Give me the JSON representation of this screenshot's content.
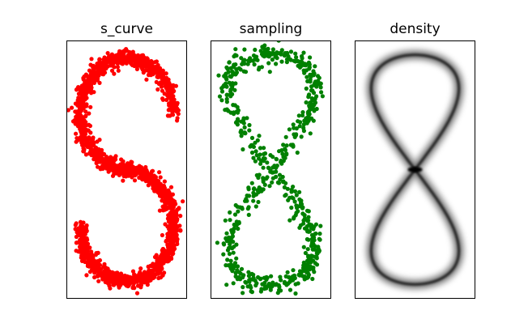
{
  "chart_data": [
    {
      "type": "scatter",
      "title": "s_curve",
      "xlabel": "",
      "ylabel": "",
      "xticks": [],
      "yticks": [],
      "grid": false,
      "xlim": [
        -1.3,
        1.3
      ],
      "ylim": [
        -2.3,
        2.3
      ],
      "series": [
        {
          "color": "#ff0000",
          "shape": "S-curve",
          "point_count": 2000
        }
      ]
    },
    {
      "type": "scatter",
      "title": "sampling",
      "xlabel": "",
      "ylabel": "",
      "xticks": [],
      "yticks": [],
      "grid": false,
      "xlim": [
        -1.3,
        1.3
      ],
      "ylim": [
        -2.3,
        2.3
      ],
      "series": [
        {
          "color": "#008000",
          "shape": "figure-eight",
          "point_count": 700
        }
      ]
    },
    {
      "type": "heatmap",
      "title": "density",
      "xlabel": "",
      "ylabel": "",
      "xticks": [],
      "yticks": [],
      "grid": false,
      "colormap": "Greys",
      "shape": "figure-eight"
    }
  ]
}
